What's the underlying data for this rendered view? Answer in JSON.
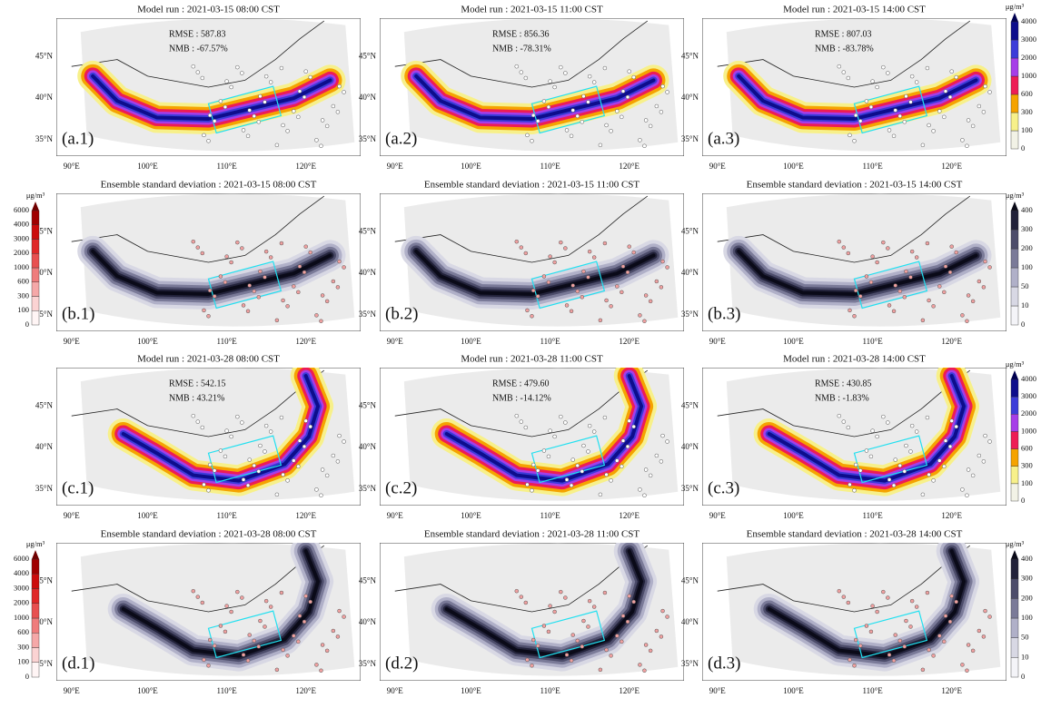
{
  "panels": [
    {
      "title": "Model run : 2021-03-15 08:00 CST",
      "rmse": "RMSE : 587.83",
      "nmb": "NMB : -67.57%",
      "label": "(a.1)"
    },
    {
      "title": "Model run : 2021-03-15 11:00 CST",
      "rmse": "RMSE : 856.36",
      "nmb": "NMB : -78.31%",
      "label": "(a.2)"
    },
    {
      "title": "Model run : 2021-03-15 14:00 CST",
      "rmse": "RMSE : 807.03",
      "nmb": "NMB : -83.78%",
      "label": "(a.3)"
    },
    {
      "title": "Ensemble standard deviation : 2021-03-15 08:00 CST",
      "label": "(b.1)"
    },
    {
      "title": "Ensemble standard deviation : 2021-03-15 11:00 CST",
      "label": "(b.2)"
    },
    {
      "title": "Ensemble standard deviation : 2021-03-15 14:00 CST",
      "label": "(b.3)"
    },
    {
      "title": "Model run : 2021-03-28 08:00 CST",
      "rmse": "RMSE : 542.15",
      "nmb": "NMB : 43.21%",
      "label": "(c.1)"
    },
    {
      "title": "Model run : 2021-03-28 11:00 CST",
      "rmse": "RMSE : 479.60",
      "nmb": "NMB : -14.12%",
      "label": "(c.2)"
    },
    {
      "title": "Model run : 2021-03-28 14:00 CST",
      "rmse": "RMSE : 430.85",
      "nmb": "NMB : -1.83%",
      "label": "(c.3)"
    },
    {
      "title": "Ensemble standard deviation : 2021-03-28 08:00 CST",
      "label": "(d.1)"
    },
    {
      "title": "Ensemble standard deviation : 2021-03-28 11:00 CST",
      "label": "(d.2)"
    },
    {
      "title": "Ensemble standard deviation : 2021-03-28 14:00 CST",
      "label": "(d.3)"
    }
  ],
  "lat_labels": [
    "45°N",
    "40°N",
    "35°N"
  ],
  "lon_labels": [
    "90°E",
    "100°E",
    "110°E",
    "120°E"
  ],
  "colorbars": {
    "model": {
      "unit": "μg/m³",
      "ticks": [
        0,
        100,
        300,
        600,
        1000,
        2000,
        3000,
        4000
      ],
      "colors": [
        "#f2f2e6",
        "#f7f08a",
        "#f5a300",
        "#ee1c55",
        "#a63de8",
        "#3c3cd9",
        "#0d0d8c",
        "#000050"
      ]
    },
    "std": {
      "unit": "μg/m³",
      "ticks": [
        0,
        10,
        50,
        100,
        200,
        300,
        400
      ],
      "colors": [
        "#f4f4f8",
        "#d8d8e4",
        "#b0b0c8",
        "#7a7a98",
        "#4c4c6a",
        "#22223a",
        "#0a0a18"
      ]
    },
    "obs": {
      "unit": "μg/m³",
      "ticks": [
        0,
        100,
        300,
        600,
        1000,
        2000,
        3000,
        4000,
        6000
      ],
      "colors": [
        "#fff5f5",
        "#fbd3d3",
        "#f5a8a8",
        "#ef7c7c",
        "#e85050",
        "#e02828",
        "#cc0c0c",
        "#a00000",
        "#700000"
      ]
    }
  }
}
